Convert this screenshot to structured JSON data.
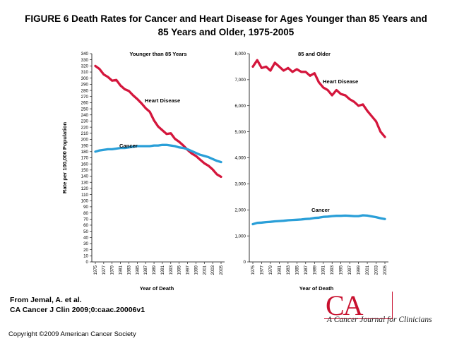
{
  "figure_title": "FIGURE 6 Death Rates for Cancer and Heart Disease for Ages Younger than 85 Years and 85 Years and Older, 1975-2005",
  "title_line1": "FIGURE 6 Death Rates for Cancer and Heart Disease for Ages Younger than 85 Years and",
  "title_line2": "85 Years and Older, 1975-2005",
  "source_line1": "From Jemal, A. et al.",
  "source_line2": "CA Cancer J Clin 2009;0:caac.20006v1",
  "copyright": "Copyright ©2009 American Cancer Society",
  "logo": {
    "mark": "CA",
    "subtitle": "A Cancer Journal for Clinicians"
  },
  "colors": {
    "heart": "#d4163c",
    "cancer": "#2a9fd8",
    "logo": "#c8102e"
  },
  "chart_data": [
    {
      "type": "line",
      "title": "Younger than 85 Years",
      "xlabel": "Year of Death",
      "ylabel": "Rate per 100,000 Population",
      "ylim": [
        0,
        340
      ],
      "y_ticks": [
        "0",
        "10",
        "20",
        "30",
        "40",
        "50",
        "60",
        "70",
        "80",
        "90",
        "100",
        "110",
        "120",
        "130",
        "140",
        "150",
        "160",
        "170",
        "180",
        "190",
        "200",
        "210",
        "220",
        "230",
        "240",
        "250",
        "260",
        "270",
        "280",
        "290",
        "300",
        "310",
        "320",
        "330",
        "340"
      ],
      "x_ticks": [
        "1975",
        "1977",
        "1979",
        "1981",
        "1983",
        "1985",
        "1987",
        "1989",
        "1991",
        "1993",
        "1995",
        "1997",
        "1999",
        "2001",
        "2003",
        "2005"
      ],
      "x": [
        1975,
        1976,
        1977,
        1978,
        1979,
        1980,
        1981,
        1982,
        1983,
        1984,
        1985,
        1986,
        1987,
        1988,
        1989,
        1990,
        1991,
        1992,
        1993,
        1994,
        1995,
        1996,
        1997,
        1998,
        1999,
        2000,
        2001,
        2002,
        2003,
        2004,
        2005
      ],
      "series": [
        {
          "name": "Heart Disease",
          "label": "Heart Disease",
          "values": [
            320,
            315,
            306,
            302,
            296,
            297,
            288,
            282,
            279,
            272,
            266,
            259,
            251,
            245,
            231,
            221,
            215,
            209,
            210,
            201,
            196,
            190,
            183,
            177,
            173,
            167,
            161,
            157,
            151,
            143,
            139
          ]
        },
        {
          "name": "Cancer",
          "label": "Cancer",
          "values": [
            180,
            182,
            183,
            184,
            184,
            185,
            186,
            186,
            187,
            188,
            189,
            189,
            189,
            189,
            190,
            190,
            191,
            191,
            190,
            189,
            187,
            186,
            184,
            181,
            178,
            175,
            173,
            171,
            168,
            165,
            163
          ]
        }
      ]
    },
    {
      "type": "line",
      "title": "85 and Older",
      "xlabel": "Year of Death",
      "ylabel": "",
      "ylim": [
        0,
        8000
      ],
      "y_ticks": [
        "0",
        "1,000",
        "2,000",
        "3,000",
        "4,000",
        "5,000",
        "6,000",
        "7,000",
        "8,000"
      ],
      "x_ticks": [
        "1975",
        "1977",
        "1979",
        "1981",
        "1983",
        "1985",
        "1987",
        "1989",
        "1991",
        "1993",
        "1995",
        "1997",
        "1999",
        "2001",
        "2003",
        "2005"
      ],
      "x": [
        1975,
        1976,
        1977,
        1978,
        1979,
        1980,
        1981,
        1982,
        1983,
        1984,
        1985,
        1986,
        1987,
        1988,
        1989,
        1990,
        1991,
        1992,
        1993,
        1994,
        1995,
        1996,
        1997,
        1998,
        1999,
        2000,
        2001,
        2002,
        2003,
        2004,
        2005
      ],
      "series": [
        {
          "name": "Heart Disease",
          "label": "Heart Disease",
          "values": [
            7500,
            7750,
            7450,
            7500,
            7350,
            7650,
            7500,
            7350,
            7450,
            7300,
            7400,
            7300,
            7300,
            7150,
            7250,
            6900,
            6700,
            6600,
            6400,
            6600,
            6450,
            6400,
            6250,
            6150,
            6000,
            6050,
            5800,
            5600,
            5400,
            5000,
            4800
          ]
        },
        {
          "name": "Cancer",
          "label": "Cancer",
          "values": [
            1450,
            1500,
            1510,
            1530,
            1540,
            1560,
            1570,
            1580,
            1600,
            1610,
            1620,
            1630,
            1650,
            1660,
            1690,
            1700,
            1730,
            1740,
            1760,
            1770,
            1770,
            1780,
            1770,
            1760,
            1760,
            1790,
            1780,
            1750,
            1720,
            1680,
            1650
          ]
        }
      ]
    }
  ]
}
